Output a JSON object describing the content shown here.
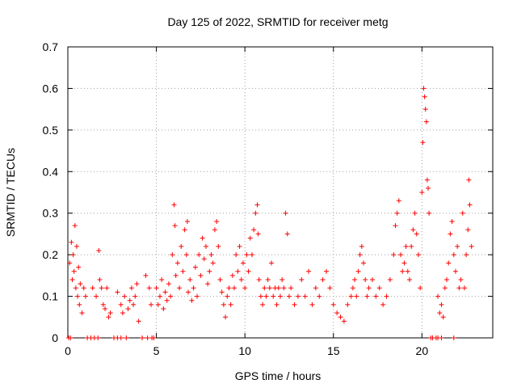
{
  "chart_data": {
    "type": "scatter",
    "title": "Day 125 of 2022, SRMTID for receiver metg",
    "xlabel": "GPS time / hours",
    "ylabel": "SRMTID / TECUs",
    "xlim": [
      0,
      24
    ],
    "ylim": [
      0,
      0.7
    ],
    "xticks": [
      "0",
      "5",
      "10",
      "15",
      "20"
    ],
    "yticks": [
      "0",
      "0.1",
      "0.2",
      "0.3",
      "0.4",
      "0.5",
      "0.6",
      "0.7"
    ],
    "grid": true,
    "marker": "+",
    "series": [
      {
        "name": "SRMTID",
        "color": "#ff0000",
        "points": [
          [
            0.05,
            0.0
          ],
          [
            0.15,
            0.0
          ],
          [
            0.1,
            0.18
          ],
          [
            0.2,
            0.23
          ],
          [
            0.25,
            0.14
          ],
          [
            0.3,
            0.2
          ],
          [
            0.35,
            0.16
          ],
          [
            0.4,
            0.27
          ],
          [
            0.45,
            0.12
          ],
          [
            0.5,
            0.22
          ],
          [
            0.55,
            0.1
          ],
          [
            0.6,
            0.17
          ],
          [
            0.65,
            0.08
          ],
          [
            0.7,
            0.13
          ],
          [
            0.8,
            0.06
          ],
          [
            0.9,
            0.12
          ],
          [
            1.0,
            0.1
          ],
          [
            1.1,
            0.0
          ],
          [
            1.3,
            0.0
          ],
          [
            1.5,
            0.0
          ],
          [
            1.7,
            0.0
          ],
          [
            1.4,
            0.12
          ],
          [
            1.6,
            0.1
          ],
          [
            1.75,
            0.21
          ],
          [
            1.8,
            0.14
          ],
          [
            1.9,
            0.12
          ],
          [
            2.0,
            0.08
          ],
          [
            2.1,
            0.07
          ],
          [
            2.2,
            0.12
          ],
          [
            2.3,
            0.05
          ],
          [
            2.4,
            0.06
          ],
          [
            2.6,
            0.0
          ],
          [
            2.8,
            0.0
          ],
          [
            3.0,
            0.0
          ],
          [
            3.3,
            0.0
          ],
          [
            2.8,
            0.11
          ],
          [
            3.0,
            0.08
          ],
          [
            3.1,
            0.06
          ],
          [
            3.2,
            0.1
          ],
          [
            3.4,
            0.07
          ],
          [
            3.5,
            0.09
          ],
          [
            3.6,
            0.12
          ],
          [
            3.7,
            0.08
          ],
          [
            3.8,
            0.1
          ],
          [
            3.9,
            0.13
          ],
          [
            4.0,
            0.04
          ],
          [
            4.2,
            0.0
          ],
          [
            4.5,
            0.0
          ],
          [
            4.75,
            0.0
          ],
          [
            4.85,
            0.0
          ],
          [
            4.4,
            0.15
          ],
          [
            4.6,
            0.12
          ],
          [
            4.7,
            0.08
          ],
          [
            5.0,
            0.12
          ],
          [
            5.1,
            0.08
          ],
          [
            5.2,
            0.1
          ],
          [
            5.3,
            0.14
          ],
          [
            5.4,
            0.07
          ],
          [
            5.5,
            0.11
          ],
          [
            5.6,
            0.09
          ],
          [
            5.7,
            0.13
          ],
          [
            5.8,
            0.1
          ],
          [
            5.9,
            0.2
          ],
          [
            6.0,
            0.32
          ],
          [
            6.05,
            0.27
          ],
          [
            6.1,
            0.15
          ],
          [
            6.2,
            0.18
          ],
          [
            6.3,
            0.12
          ],
          [
            6.4,
            0.22
          ],
          [
            6.5,
            0.16
          ],
          [
            6.6,
            0.26
          ],
          [
            6.7,
            0.2
          ],
          [
            6.75,
            0.28
          ],
          [
            6.8,
            0.11
          ],
          [
            6.9,
            0.14
          ],
          [
            7.0,
            0.09
          ],
          [
            7.1,
            0.12
          ],
          [
            7.2,
            0.17
          ],
          [
            7.3,
            0.1
          ],
          [
            7.4,
            0.2
          ],
          [
            7.5,
            0.15
          ],
          [
            7.6,
            0.24
          ],
          [
            7.7,
            0.19
          ],
          [
            7.8,
            0.22
          ],
          [
            7.9,
            0.13
          ],
          [
            8.0,
            0.16
          ],
          [
            8.1,
            0.2
          ],
          [
            8.2,
            0.18
          ],
          [
            8.3,
            0.26
          ],
          [
            8.4,
            0.28
          ],
          [
            8.5,
            0.22
          ],
          [
            8.6,
            0.14
          ],
          [
            8.7,
            0.11
          ],
          [
            8.8,
            0.08
          ],
          [
            8.9,
            0.05
          ],
          [
            9.0,
            0.1
          ],
          [
            9.1,
            0.12
          ],
          [
            9.2,
            0.08
          ],
          [
            9.3,
            0.15
          ],
          [
            9.4,
            0.12
          ],
          [
            9.5,
            0.2
          ],
          [
            9.6,
            0.16
          ],
          [
            9.7,
            0.22
          ],
          [
            9.8,
            0.14
          ],
          [
            9.9,
            0.18
          ],
          [
            10.0,
            0.12
          ],
          [
            10.1,
            0.2
          ],
          [
            10.2,
            0.16
          ],
          [
            10.3,
            0.24
          ],
          [
            10.4,
            0.2
          ],
          [
            10.5,
            0.26
          ],
          [
            10.6,
            0.3
          ],
          [
            10.7,
            0.32
          ],
          [
            10.75,
            0.25
          ],
          [
            10.8,
            0.14
          ],
          [
            10.9,
            0.1
          ],
          [
            11.0,
            0.08
          ],
          [
            11.1,
            0.12
          ],
          [
            11.2,
            0.1
          ],
          [
            11.3,
            0.14
          ],
          [
            11.4,
            0.12
          ],
          [
            11.5,
            0.18
          ],
          [
            11.6,
            0.1
          ],
          [
            11.7,
            0.12
          ],
          [
            11.8,
            0.08
          ],
          [
            11.9,
            0.12
          ],
          [
            12.0,
            0.1
          ],
          [
            12.1,
            0.14
          ],
          [
            12.2,
            0.12
          ],
          [
            12.3,
            0.3
          ],
          [
            12.4,
            0.25
          ],
          [
            12.5,
            0.1
          ],
          [
            12.6,
            0.12
          ],
          [
            12.8,
            0.08
          ],
          [
            13.0,
            0.1
          ],
          [
            13.2,
            0.14
          ],
          [
            13.4,
            0.1
          ],
          [
            13.6,
            0.16
          ],
          [
            13.8,
            0.08
          ],
          [
            14.0,
            0.12
          ],
          [
            14.2,
            0.1
          ],
          [
            14.4,
            0.14
          ],
          [
            14.6,
            0.16
          ],
          [
            14.8,
            0.12
          ],
          [
            15.0,
            0.08
          ],
          [
            15.2,
            0.06
          ],
          [
            15.4,
            0.05
          ],
          [
            15.6,
            0.04
          ],
          [
            15.8,
            0.08
          ],
          [
            16.0,
            0.1
          ],
          [
            16.1,
            0.12
          ],
          [
            16.2,
            0.14
          ],
          [
            16.3,
            0.1
          ],
          [
            16.4,
            0.16
          ],
          [
            16.5,
            0.2
          ],
          [
            16.6,
            0.22
          ],
          [
            16.7,
            0.18
          ],
          [
            16.8,
            0.14
          ],
          [
            16.9,
            0.1
          ],
          [
            17.0,
            0.12
          ],
          [
            17.2,
            0.14
          ],
          [
            17.4,
            0.1
          ],
          [
            17.6,
            0.12
          ],
          [
            17.8,
            0.08
          ],
          [
            18.0,
            0.1
          ],
          [
            18.2,
            0.14
          ],
          [
            18.4,
            0.2
          ],
          [
            18.5,
            0.27
          ],
          [
            18.6,
            0.3
          ],
          [
            18.7,
            0.33
          ],
          [
            18.8,
            0.2
          ],
          [
            18.9,
            0.16
          ],
          [
            19.0,
            0.18
          ],
          [
            19.1,
            0.22
          ],
          [
            19.2,
            0.16
          ],
          [
            19.3,
            0.14
          ],
          [
            19.4,
            0.22
          ],
          [
            19.5,
            0.26
          ],
          [
            19.6,
            0.3
          ],
          [
            19.7,
            0.25
          ],
          [
            19.8,
            0.2
          ],
          [
            19.9,
            0.12
          ],
          [
            20.0,
            0.35
          ],
          [
            20.05,
            0.47
          ],
          [
            20.1,
            0.6
          ],
          [
            20.15,
            0.58
          ],
          [
            20.2,
            0.55
          ],
          [
            20.25,
            0.52
          ],
          [
            20.3,
            0.38
          ],
          [
            20.35,
            0.36
          ],
          [
            20.4,
            0.3
          ],
          [
            20.5,
            0.0
          ],
          [
            20.6,
            0.0
          ],
          [
            20.8,
            0.0
          ],
          [
            20.9,
            0.0
          ],
          [
            21.1,
            0.0
          ],
          [
            21.8,
            0.0
          ],
          [
            20.9,
            0.1
          ],
          [
            21.0,
            0.06
          ],
          [
            21.1,
            0.08
          ],
          [
            21.2,
            0.05
          ],
          [
            21.3,
            0.12
          ],
          [
            21.4,
            0.14
          ],
          [
            21.5,
            0.18
          ],
          [
            21.6,
            0.25
          ],
          [
            21.7,
            0.28
          ],
          [
            21.8,
            0.2
          ],
          [
            21.9,
            0.16
          ],
          [
            22.0,
            0.22
          ],
          [
            22.1,
            0.12
          ],
          [
            22.2,
            0.14
          ],
          [
            22.3,
            0.3
          ],
          [
            22.4,
            0.12
          ],
          [
            22.5,
            0.2
          ],
          [
            22.6,
            0.26
          ],
          [
            22.65,
            0.38
          ],
          [
            22.7,
            0.32
          ],
          [
            22.8,
            0.22
          ]
        ]
      }
    ]
  }
}
